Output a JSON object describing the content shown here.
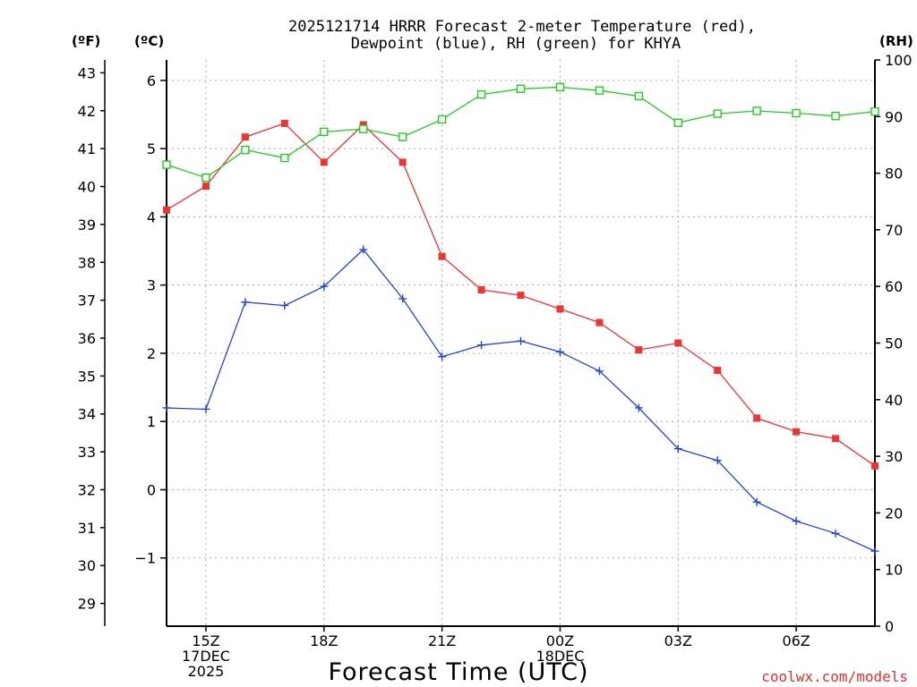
{
  "chart_data": {
    "type": "line",
    "title": "2025121714 HRRR Forecast 2-meter Temperature (red),",
    "subtitle": "Dewpoint (blue), RH (green) for KHYA",
    "xlabel": "Forecast Time (UTC)",
    "credit": "coolwx.com/models",
    "units": {
      "fahrenheit": "(ºF)",
      "celsius": "(ºC)",
      "rh": "(RH)"
    },
    "x_hours": [
      14,
      15,
      16,
      17,
      18,
      19,
      20,
      21,
      22,
      23,
      24,
      25,
      26,
      27,
      28,
      29,
      30,
      31,
      32
    ],
    "x_range": [
      14,
      32
    ],
    "x_ticks": [
      {
        "hour": 15,
        "lines": [
          "15Z",
          "17DEC",
          "2025"
        ]
      },
      {
        "hour": 18,
        "lines": [
          "18Z"
        ]
      },
      {
        "hour": 21,
        "lines": [
          "21Z"
        ]
      },
      {
        "hour": 24,
        "lines": [
          "00Z",
          "18DEC"
        ]
      },
      {
        "hour": 27,
        "lines": [
          "03Z"
        ]
      },
      {
        "hour": 30,
        "lines": [
          "06Z"
        ]
      }
    ],
    "celsius_axis": {
      "range": [
        -2.0,
        6.3
      ],
      "ticks": [
        "-1",
        "0",
        "1",
        "2",
        "3",
        "4",
        "5",
        "6"
      ]
    },
    "fahrenheit_axis": {
      "ticks": [
        "29",
        "30",
        "31",
        "32",
        "33",
        "34",
        "35",
        "36",
        "37",
        "38",
        "39",
        "40",
        "41",
        "42",
        "43"
      ]
    },
    "rh_axis": {
      "range": [
        0,
        100
      ],
      "ticks": [
        "0",
        "10",
        "20",
        "30",
        "40",
        "50",
        "60",
        "70",
        "80",
        "90",
        "100"
      ]
    },
    "series": [
      {
        "name": "Temperature",
        "color": "#ee3333",
        "marker": "filled-square",
        "axis": "celsius",
        "values": [
          4.1,
          4.45,
          5.17,
          5.37,
          4.8,
          5.35,
          4.8,
          3.42,
          2.93,
          2.85,
          2.65,
          2.45,
          2.05,
          2.15,
          1.75,
          1.05,
          0.85,
          0.75,
          0.35
        ]
      },
      {
        "name": "Dewpoint",
        "color": "#2244dd",
        "marker": "plus",
        "axis": "celsius",
        "values": [
          1.2,
          1.18,
          2.75,
          2.7,
          2.98,
          3.52,
          2.8,
          1.95,
          2.12,
          2.18,
          2.02,
          1.74,
          1.2,
          0.6,
          0.43,
          -0.18,
          -0.46,
          -0.64,
          -0.9
        ]
      },
      {
        "name": "RH",
        "color": "#22cc22",
        "marker": "open-square",
        "axis": "rh",
        "values": [
          81.5,
          79.2,
          84.1,
          82.7,
          87.3,
          87.8,
          86.4,
          89.5,
          93.9,
          94.9,
          95.2,
          94.6,
          93.6,
          88.9,
          90.5,
          91.0,
          90.6,
          90.1,
          90.9
        ]
      }
    ]
  }
}
